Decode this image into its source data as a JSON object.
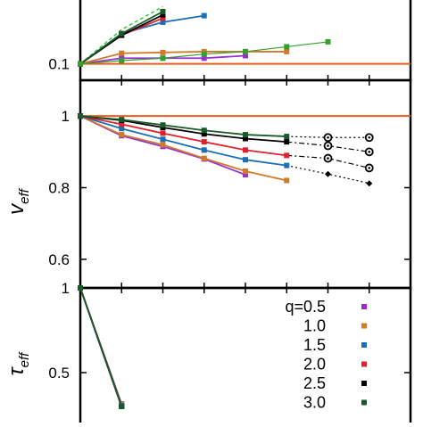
{
  "chart_data": [
    {
      "type": "line",
      "panel": "top",
      "ylabel": "",
      "xlim": [
        0,
        4
      ],
      "ylim": [
        0.09,
        0.15
      ],
      "yticks": [
        0.1
      ],
      "ytick_labels": [
        "0.1"
      ],
      "x": [
        0,
        0.5,
        1,
        1.5,
        2,
        2.5
      ],
      "reference_line": {
        "y": 0.1,
        "color": "#f05a1e"
      },
      "series": [
        {
          "key": "q0.5",
          "color": "#9b30d0",
          "marker": "square",
          "values": [
            0.1,
            0.1035,
            0.1035,
            0.1035,
            0.105,
            null
          ]
        },
        {
          "key": "q1.0",
          "color": "#d07a2a",
          "marker": "square",
          "values": [
            0.1,
            0.1065,
            0.107,
            0.1075,
            0.1075,
            0.1075
          ]
        },
        {
          "key": "q1.5",
          "color": "#1a6fb5",
          "marker": "square",
          "values": [
            0.1,
            0.1185,
            0.1255,
            0.1295,
            null,
            null
          ]
        },
        {
          "key": "q2.0",
          "color": "#e0202a",
          "marker": "square",
          "values": [
            0.1,
            0.1175,
            0.128,
            null,
            null,
            null
          ]
        },
        {
          "key": "q2.5",
          "color": "#000000",
          "marker": "square",
          "values": [
            0.1,
            0.1175,
            0.13,
            null,
            null,
            null
          ]
        },
        {
          "key": "q3.0",
          "color": "#1a5a2a",
          "marker": "square",
          "values": [
            0.1,
            0.1185,
            0.132,
            null,
            null,
            null
          ]
        },
        {
          "key": "green-thin",
          "color": "#33a02c",
          "marker": "square",
          "values": [
            0.1,
            0.102,
            0.1035,
            0.106,
            0.1075,
            0.1105,
            0.1135
          ],
          "x": [
            0,
            0.5,
            1,
            1.5,
            2,
            2.5,
            3
          ]
        }
      ],
      "dashed_series": {
        "color": "#33cc33",
        "x": [
          0,
          0.5,
          1
        ],
        "values": [
          0.1,
          0.121,
          0.135
        ]
      }
    },
    {
      "type": "line",
      "panel": "middle",
      "ylabel": "v_eff",
      "xlim": [
        0,
        4
      ],
      "ylim": [
        0.52,
        1.1
      ],
      "yticks": [
        0.6,
        0.8,
        1.0
      ],
      "ytick_labels": [
        "0.6",
        "0.8",
        "1"
      ],
      "x": [
        0,
        0.5,
        1,
        1.5,
        2,
        2.5
      ],
      "reference_line": {
        "y": 1.0,
        "color": "#f05a1e"
      },
      "series": [
        {
          "key": "q0.5",
          "color": "#9b30d0",
          "marker": "square",
          "values": [
            1.0,
            0.945,
            0.915,
            0.88,
            0.836,
            null
          ]
        },
        {
          "key": "q1.0",
          "color": "#d07a2a",
          "marker": "square",
          "values": [
            1.0,
            0.948,
            0.92,
            0.882,
            0.846,
            0.82
          ]
        },
        {
          "key": "q1.5",
          "color": "#1a6fb5",
          "marker": "square",
          "values": [
            1.0,
            0.965,
            0.935,
            0.905,
            0.878,
            0.862
          ]
        },
        {
          "key": "q2.0",
          "color": "#e0202a",
          "marker": "square",
          "values": [
            1.0,
            0.977,
            0.952,
            0.928,
            0.905,
            0.89
          ]
        },
        {
          "key": "q2.5",
          "color": "#000000",
          "marker": "square",
          "values": [
            1.0,
            0.988,
            0.968,
            0.95,
            0.937,
            0.928
          ]
        },
        {
          "key": "q3.0",
          "color": "#1a5a2a",
          "marker": "square",
          "values": [
            1.0,
            0.99,
            0.975,
            0.96,
            0.948,
            0.943
          ]
        }
      ],
      "extrapolations": [
        {
          "style": "dotted",
          "marker": "open-circle",
          "x": [
            2.5,
            3.0,
            3.5
          ],
          "values": [
            0.943,
            0.94,
            0.94
          ]
        },
        {
          "style": "dashdot",
          "marker": "open-circle",
          "x": [
            2.5,
            3.0,
            3.5
          ],
          "values": [
            0.928,
            0.917,
            0.9
          ]
        },
        {
          "style": "dashdot",
          "marker": "open-circle",
          "x": [
            2.5,
            3.0,
            3.5
          ],
          "values": [
            0.89,
            0.882,
            0.855
          ]
        },
        {
          "style": "dotted",
          "marker": "diamond",
          "x": [
            2.5,
            3.0,
            3.5
          ],
          "values": [
            0.862,
            0.838,
            0.812
          ]
        }
      ]
    },
    {
      "type": "line",
      "panel": "bottom",
      "ylabel": "τ_eff",
      "xlim": [
        0,
        4
      ],
      "ylim": [
        0.1,
        1.0
      ],
      "yticks": [
        0.5,
        1.0
      ],
      "ytick_labels": [
        "0.5",
        "1"
      ],
      "legend_title_prefix": "q=",
      "legend_placement": "right",
      "legend": [
        {
          "label": "0.5",
          "color": "#9b30d0"
        },
        {
          "label": "1.0",
          "color": "#d07a2a"
        },
        {
          "label": "1.5",
          "color": "#1a6fb5"
        },
        {
          "label": "2.0",
          "color": "#e0202a"
        },
        {
          "label": "2.5",
          "color": "#000000"
        },
        {
          "label": "3.0",
          "color": "#1a5a2a"
        }
      ],
      "x": [
        0,
        0.5
      ],
      "series": [
        {
          "key": "q0.5",
          "color": "#9b30d0",
          "marker": "square",
          "values": [
            1.0,
            0.315
          ]
        },
        {
          "key": "q1.0",
          "color": "#d07a2a",
          "marker": "square",
          "values": [
            1.0,
            0.31
          ]
        },
        {
          "key": "q1.5",
          "color": "#1a6fb5",
          "marker": "square",
          "values": [
            1.0,
            0.305
          ]
        },
        {
          "key": "q2.0",
          "color": "#e0202a",
          "marker": "square",
          "values": [
            1.0,
            0.3
          ]
        },
        {
          "key": "q2.5",
          "color": "#000000",
          "marker": "square",
          "values": [
            1.0,
            0.3
          ]
        },
        {
          "key": "q3.0",
          "color": "#1a5a2a",
          "marker": "square",
          "values": [
            1.0,
            0.3
          ]
        }
      ]
    }
  ]
}
